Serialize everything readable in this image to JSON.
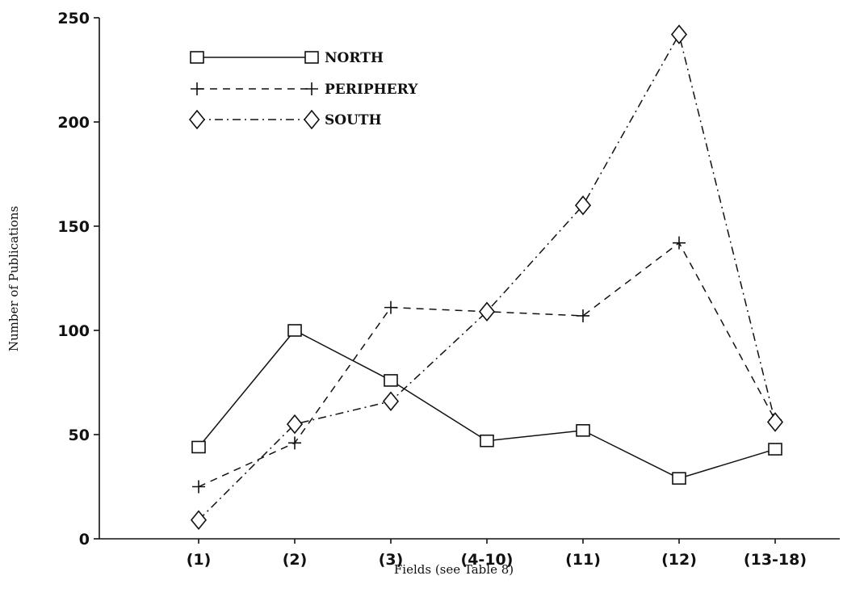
{
  "chart_data": {
    "type": "line",
    "title": "",
    "xlabel": "Fields (see Table 8)",
    "ylabel": "Number of Publications",
    "categories": [
      "(1)",
      "(2)",
      "(3)",
      "(4-10)",
      "(11)",
      "(12)",
      "(13-18)"
    ],
    "ylim": [
      0,
      250
    ],
    "yticks": [
      0,
      50,
      100,
      150,
      200,
      250
    ],
    "grid": false,
    "legend_position": "top-left",
    "series": [
      {
        "name": "NORTH",
        "marker": "square",
        "line_style": "solid",
        "values": [
          44,
          100,
          76,
          47,
          52,
          29,
          43
        ]
      },
      {
        "name": "PERIPHERY",
        "marker": "plus",
        "line_style": "dashed",
        "values": [
          25,
          46,
          111,
          109,
          107,
          142,
          57
        ]
      },
      {
        "name": "SOUTH",
        "marker": "diamond",
        "line_style": "dash-dot",
        "values": [
          9,
          55,
          66,
          109,
          160,
          242,
          56
        ]
      }
    ]
  }
}
